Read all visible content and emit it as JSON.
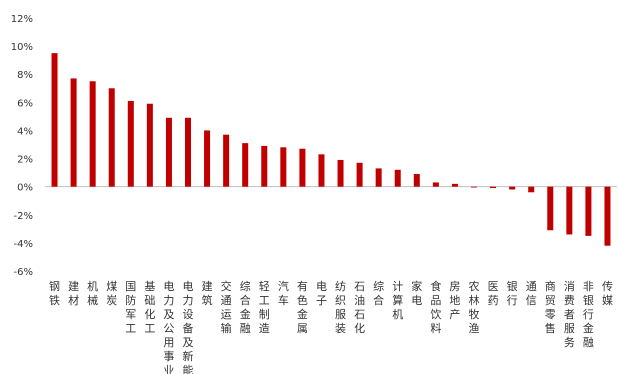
{
  "chart_data": {
    "type": "bar",
    "title": "",
    "xlabel": "",
    "ylabel": "",
    "ylim": [
      -6,
      12
    ],
    "yticks": [
      -6,
      -4,
      -2,
      0,
      2,
      4,
      6,
      8,
      10,
      12
    ],
    "ytick_labels": [
      "-6%",
      "-4%",
      "-2%",
      "0%",
      "2%",
      "4%",
      "6%",
      "8%",
      "10%",
      "12%"
    ],
    "grid": false,
    "legend": "none",
    "bar_color": "#c00000",
    "categories": [
      "钢铁",
      "建材",
      "机械",
      "煤炭",
      "国防军工",
      "基础化工",
      "电力及公用事业",
      "电力设备及新能源",
      "建筑",
      "交通运输",
      "综合金融",
      "轻工制造",
      "汽车",
      "有色金属",
      "电子",
      "纺织服装",
      "石油石化",
      "综合",
      "计算机",
      "家电",
      "食品饮料",
      "房地产",
      "农林牧渔",
      "医药",
      "银行",
      "通信",
      "商贸零售",
      "消费者服务",
      "非银行金融",
      "传媒"
    ],
    "values": [
      9.5,
      7.7,
      7.5,
      7.0,
      6.1,
      5.9,
      4.9,
      4.9,
      4.0,
      3.7,
      3.1,
      2.9,
      2.8,
      2.7,
      2.3,
      1.9,
      1.7,
      1.3,
      1.2,
      0.9,
      0.3,
      0.2,
      -0.05,
      -0.1,
      -0.2,
      -0.4,
      -3.1,
      -3.4,
      -3.5,
      -4.2
    ]
  }
}
